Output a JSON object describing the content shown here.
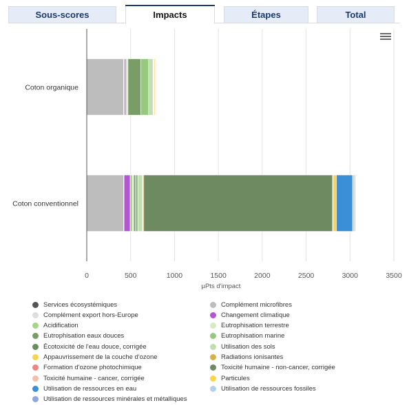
{
  "tabs": [
    {
      "label": "Sous-scores",
      "active": false
    },
    {
      "label": "Impacts",
      "active": true
    },
    {
      "label": "Étapes",
      "active": false
    },
    {
      "label": "Total",
      "active": false
    }
  ],
  "menu_icon": "hamburger-menu-icon",
  "chart_data": {
    "type": "bar",
    "orientation": "horizontal",
    "stacked": true,
    "categories": [
      "Coton organique",
      "Coton conventionnel"
    ],
    "xlabel": "µPts d'impact",
    "xlim": [
      0,
      3500
    ],
    "xticks": [
      0,
      500,
      1000,
      1500,
      2000,
      2500,
      3000,
      3500
    ],
    "grid": "vertical",
    "legend_position": "bottom",
    "series": [
      {
        "name": "Services écosystémiques",
        "color": "#555555",
        "values": [
          0,
          0
        ]
      },
      {
        "name": "Complément microfibres",
        "color": "#bdbdbd",
        "values": [
          420,
          420
        ]
      },
      {
        "name": "Complément export hors-Europe",
        "color": "#dddddd",
        "values": [
          10,
          5
        ]
      },
      {
        "name": "Changement climatique",
        "color": "#b455d6",
        "values": [
          15,
          70
        ]
      },
      {
        "name": "Acidification",
        "color": "#a6d585",
        "values": [
          10,
          25
        ]
      },
      {
        "name": "Eutrophisation terrestre",
        "color": "#d4ecc4",
        "values": [
          15,
          15
        ]
      },
      {
        "name": "Eutrophisation eaux douces",
        "color": "#7a9c66",
        "values": [
          145,
          20
        ]
      },
      {
        "name": "Eutrophisation marine",
        "color": "#95c97f",
        "values": [
          90,
          30
        ]
      },
      {
        "name": "Écotoxicité de l'eau douce, corrigée",
        "color": "#6b8c5c",
        "values": [
          0,
          0
        ]
      },
      {
        "name": "Utilisation des sols",
        "color": "#c0deb0",
        "values": [
          50,
          50
        ]
      },
      {
        "name": "Appauvrissement de la couche d'ozone",
        "color": "#f6d44e",
        "values": [
          5,
          5
        ]
      },
      {
        "name": "Radiations ionisantes",
        "color": "#d6b04a",
        "values": [
          5,
          10
        ]
      },
      {
        "name": "Formation d'ozone photochimique",
        "color": "#f08585",
        "values": [
          0,
          0
        ]
      },
      {
        "name": "Toxicité humaine - non-cancer, corrigée",
        "color": "#6e8a60",
        "values": [
          0,
          2150
        ]
      },
      {
        "name": "Toxicité humaine - cancer, corrigée",
        "color": "#f2c0a8",
        "values": [
          5,
          10
        ]
      },
      {
        "name": "Particules",
        "color": "#fcd34d",
        "values": [
          10,
          35
        ]
      },
      {
        "name": "Utilisation de ressources en eau",
        "color": "#3b8fd6",
        "values": [
          0,
          185
        ]
      },
      {
        "name": "Utilisation de ressources fossiles",
        "color": "#b8d0f0",
        "values": [
          5,
          20
        ]
      },
      {
        "name": "Utilisation de ressources minérales et métalliques",
        "color": "#8fa6e0",
        "values": [
          5,
          10
        ]
      }
    ]
  }
}
